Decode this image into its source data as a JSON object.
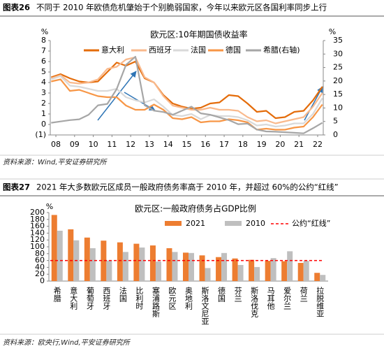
{
  "headers": [
    {
      "label": "图表26",
      "text": "不同于 2010 年欧债危机肇始于个别脆弱国家，今年以来欧元区各国利率同步上行"
    },
    {
      "label": "图表27",
      "text": "2021 年大多数欧元区成员一般政府债务率高于 2010 年，并超过 60%的公约“红线”"
    }
  ],
  "sources": [
    "资料来源：Wind,平安证券研究所",
    "资料来源：欧央行,Wind,平安证券研究所"
  ],
  "chart_data": [
    {
      "type": "line",
      "title": "欧元区:10年期国债收益率",
      "ylabel": "%",
      "y2label": "%",
      "x": [
        2008.25,
        2008.75,
        2009.25,
        2009.75,
        2010.25,
        2010.75,
        2011.25,
        2011.75,
        2012.25,
        2012.75,
        2013.25,
        2013.75,
        2014.25,
        2014.75,
        2015.25,
        2015.75,
        2016.25,
        2016.75,
        2017.25,
        2017.75,
        2018.25,
        2018.75,
        2019.25,
        2019.75,
        2020.25,
        2020.75,
        2021.25,
        2021.75,
        2022.25,
        2022.75
      ],
      "xlim": [
        2008.2,
        2022.8
      ],
      "xticks": [
        {
          "value": 2008.5,
          "label": "08"
        },
        {
          "value": 2009.5,
          "label": "09"
        },
        {
          "value": 2010.5,
          "label": "10"
        },
        {
          "value": 2011.5,
          "label": "11"
        },
        {
          "value": 2012.5,
          "label": "12"
        },
        {
          "value": 2013.5,
          "label": "13"
        },
        {
          "value": 2014.5,
          "label": "14"
        },
        {
          "value": 2015.5,
          "label": "15"
        },
        {
          "value": 2016.5,
          "label": "16"
        },
        {
          "value": 2017.5,
          "label": "17"
        },
        {
          "value": 2018.5,
          "label": "18"
        },
        {
          "value": 2019.5,
          "label": "19"
        },
        {
          "value": 2020.5,
          "label": "20"
        },
        {
          "value": 2021.5,
          "label": "21"
        },
        {
          "value": 2022.5,
          "label": "22"
        }
      ],
      "ylim": [
        -1,
        8
      ],
      "yticks": [
        {
          "value": -1,
          "label": "(1)"
        },
        0,
        1,
        2,
        3,
        4,
        5,
        6,
        7,
        8
      ],
      "y2lim": [
        0,
        35
      ],
      "y2ticks": [
        0,
        5,
        10,
        15,
        20,
        25,
        30,
        35
      ],
      "series": [
        {
          "name": "意大利",
          "color": "#e46c0a",
          "values": [
            4.5,
            4.8,
            4.4,
            4.1,
            4.0,
            4.1,
            5.0,
            5.9,
            5.6,
            6.0,
            4.4,
            4.0,
            2.8,
            2.0,
            1.7,
            1.5,
            1.6,
            2.0,
            2.1,
            2.8,
            2.7,
            2.0,
            1.2,
            1.3,
            0.6,
            0.7,
            1.2,
            1.3,
            2.3,
            3.6
          ]
        },
        {
          "name": "西班牙",
          "color": "#f9b98c",
          "values": [
            4.4,
            4.7,
            4.0,
            3.9,
            4.0,
            4.3,
            5.3,
            5.5,
            6.2,
            6.4,
            4.5,
            4.0,
            2.7,
            1.8,
            1.6,
            1.4,
            1.4,
            1.6,
            1.4,
            1.4,
            1.3,
            0.7,
            0.3,
            0.4,
            0.1,
            0.3,
            0.5,
            0.7,
            1.7,
            3.0
          ]
        },
        {
          "name": "法国",
          "color": "#d9d9d9",
          "values": [
            4.3,
            4.6,
            3.7,
            3.6,
            3.4,
            3.2,
            3.2,
            3.4,
            2.6,
            2.3,
            2.1,
            2.4,
            1.7,
            0.9,
            0.8,
            1.0,
            0.5,
            0.9,
            0.8,
            0.8,
            0.7,
            0.4,
            -0.1,
            0.0,
            -0.2,
            -0.1,
            0.1,
            0.1,
            1.0,
            2.5
          ]
        },
        {
          "name": "德国",
          "color": "#f79646",
          "values": [
            4.1,
            4.3,
            3.2,
            3.3,
            3.0,
            2.7,
            2.6,
            2.6,
            1.8,
            1.4,
            1.4,
            1.9,
            1.4,
            0.6,
            0.5,
            0.7,
            0.2,
            0.3,
            0.3,
            0.5,
            0.4,
            0.2,
            -0.5,
            -0.4,
            -0.5,
            -0.5,
            -0.3,
            -0.2,
            0.7,
            1.9
          ]
        },
        {
          "name": "希腊(右轴)",
          "color": "#a6a6a6",
          "axis": "y2",
          "values": [
            4.5,
            5.0,
            5.5,
            5.8,
            7.5,
            11.0,
            11.5,
            17.0,
            26.0,
            29.0,
            11.0,
            9.0,
            8.5,
            7.5,
            9.0,
            10.5,
            8.0,
            7.5,
            6.5,
            5.5,
            4.0,
            4.2,
            2.0,
            1.3,
            1.2,
            1.0,
            0.8,
            0.6,
            2.5,
            4.5
          ]
        }
      ]
    },
    {
      "type": "bar",
      "title": "欧元区:一般政府债务占GDP比例",
      "ylabel": "%",
      "categories": [
        "希腊",
        "意大利",
        "葡萄牙",
        "西班牙",
        "法国",
        "比利时",
        "塞浦路斯",
        "欧元区",
        "奥地利",
        "斯洛文尼亚",
        "德国",
        "芬兰",
        "斯洛伐克",
        "马耳他",
        "爱尔兰",
        "荷兰",
        "拉脱维亚"
      ],
      "ylim": [
        0,
        200
      ],
      "yticks": [
        0,
        20,
        40,
        60,
        80,
        100,
        120,
        140,
        160,
        180,
        200
      ],
      "series": [
        {
          "name": "2021",
          "color": "#ed7d31",
          "values": [
            193,
            151,
            127,
            118,
            113,
            109,
            104,
            96,
            83,
            75,
            70,
            66,
            62,
            59,
            58,
            53,
            24
          ]
        },
        {
          "name": "2010",
          "color": "#bfbfbf",
          "values": [
            147,
            119,
            96,
            60,
            85,
            98,
            57,
            85,
            82,
            38,
            82,
            47,
            41,
            67,
            87,
            59,
            18
          ]
        }
      ],
      "reference_line": {
        "name": "公约“红线”",
        "value": 60,
        "color": "#ff0000"
      }
    }
  ]
}
